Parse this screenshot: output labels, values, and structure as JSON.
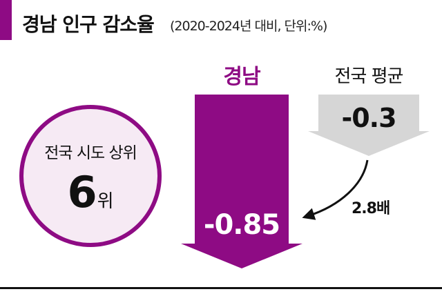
{
  "header": {
    "title": "경남 인구 감소율",
    "subtitle": "(2020-2024년 대비, 단위:%)"
  },
  "rank_badge": {
    "label": "전국 시도 상위",
    "value": "6",
    "unit": "위"
  },
  "comparison": {
    "ratio_label": "2.8배"
  },
  "colors": {
    "accent": "#8e0b84",
    "national": "#d6d6d6",
    "circle_fill": "#f6eaf4",
    "text": "#111111"
  },
  "chart_data": {
    "type": "bar",
    "categories": [
      "경남",
      "전국 평균"
    ],
    "values": [
      -0.85,
      -0.3
    ],
    "value_labels": [
      "-0.85",
      "-0.3"
    ],
    "title": "경남 인구 감소율",
    "subtitle": "(2020-2024년 대비, 단위:%)",
    "xlabel": "",
    "ylabel": "",
    "ylim": [
      -0.85,
      0
    ],
    "orientation": "downward arrows",
    "grid": false,
    "legend": "none"
  }
}
